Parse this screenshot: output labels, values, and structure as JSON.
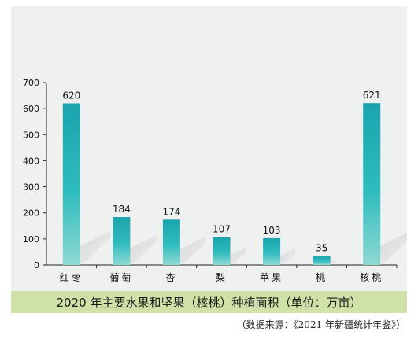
{
  "chart_data": {
    "type": "bar",
    "categories": [
      "红枣",
      "葡萄",
      "杏",
      "梨",
      "苹果",
      "桃",
      "核桃"
    ],
    "values": [
      620,
      184,
      174,
      107,
      103,
      35,
      621
    ],
    "data_labels": [
      "620",
      "184",
      "174",
      "107",
      "103",
      "35",
      "621"
    ],
    "title": "2020 年主要水果和坚果（核桃）种植面积（单位：万亩）",
    "xlabel": "",
    "ylabel": "",
    "ylim": [
      0,
      700
    ],
    "yticks": [
      0,
      100,
      200,
      300,
      400,
      500,
      600,
      700
    ],
    "grid": false,
    "legend": "none"
  },
  "source_note": "（数据来源：《2021 年新疆统计年鉴》）",
  "colors": {
    "panel_bg": "#eff0f0",
    "bar_top": "#1aa3ad",
    "bar_mid": "#2fbcbf",
    "bar_bottom": "#8fd9d3",
    "caption_bg": "#cfe1a6",
    "axis": "#222222"
  }
}
